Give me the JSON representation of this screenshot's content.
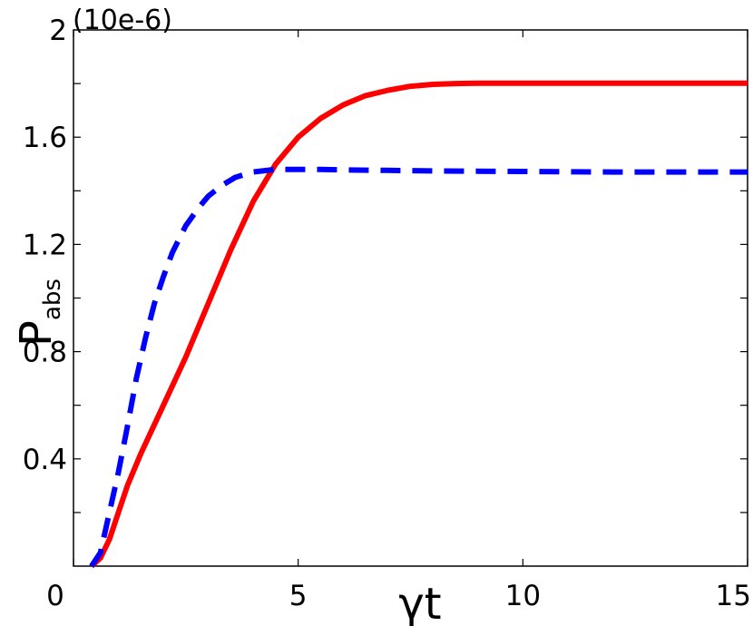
{
  "chart_data": {
    "type": "line",
    "scale_note": "(10e-6)",
    "xlabel": "γt",
    "ylabel_main": "P",
    "ylabel_sub": "abs",
    "xlim": [
      0,
      15
    ],
    "ylim": [
      0,
      2
    ],
    "x_ticks": [
      0,
      5,
      10,
      15
    ],
    "x_tick_labels": [
      "0",
      "5",
      "10",
      "15"
    ],
    "y_ticks": [
      0.4,
      0.8,
      1.2,
      1.6,
      2
    ],
    "y_tick_labels": [
      "0.4",
      "0.8",
      "1.2",
      "1.6",
      "2"
    ],
    "grid": false,
    "series": [
      {
        "style": "solid",
        "color": "#ff0000",
        "x": [
          0.4,
          0.6,
          0.8,
          1.0,
          1.2,
          1.5,
          2.0,
          2.5,
          3.0,
          3.5,
          4.0,
          4.5,
          5.0,
          5.5,
          6.0,
          6.5,
          7.0,
          7.5,
          8.0,
          8.5,
          9.0,
          10.0,
          11.0,
          12.0,
          13.0,
          14.0,
          15.0
        ],
        "y": [
          0.0,
          0.03,
          0.1,
          0.2,
          0.3,
          0.42,
          0.6,
          0.78,
          0.98,
          1.18,
          1.36,
          1.5,
          1.6,
          1.67,
          1.72,
          1.755,
          1.775,
          1.79,
          1.797,
          1.8,
          1.801,
          1.801,
          1.801,
          1.801,
          1.801,
          1.801,
          1.801
        ]
      },
      {
        "style": "dashed",
        "color": "#0000ff",
        "x": [
          0.4,
          0.6,
          0.8,
          1.0,
          1.2,
          1.4,
          1.6,
          1.8,
          2.0,
          2.2,
          2.5,
          2.8,
          3.0,
          3.3,
          3.6,
          4.0,
          4.5,
          5.0,
          5.5,
          6.0,
          7.0,
          8.0,
          9.0,
          10.0,
          11.0,
          12.0,
          13.0,
          14.0,
          15.0
        ],
        "y": [
          0.0,
          0.05,
          0.2,
          0.35,
          0.52,
          0.7,
          0.85,
          0.98,
          1.08,
          1.17,
          1.27,
          1.34,
          1.38,
          1.42,
          1.45,
          1.47,
          1.48,
          1.48,
          1.48,
          1.478,
          1.476,
          1.474,
          1.473,
          1.472,
          1.471,
          1.47,
          1.47,
          1.47,
          1.47
        ]
      }
    ]
  }
}
